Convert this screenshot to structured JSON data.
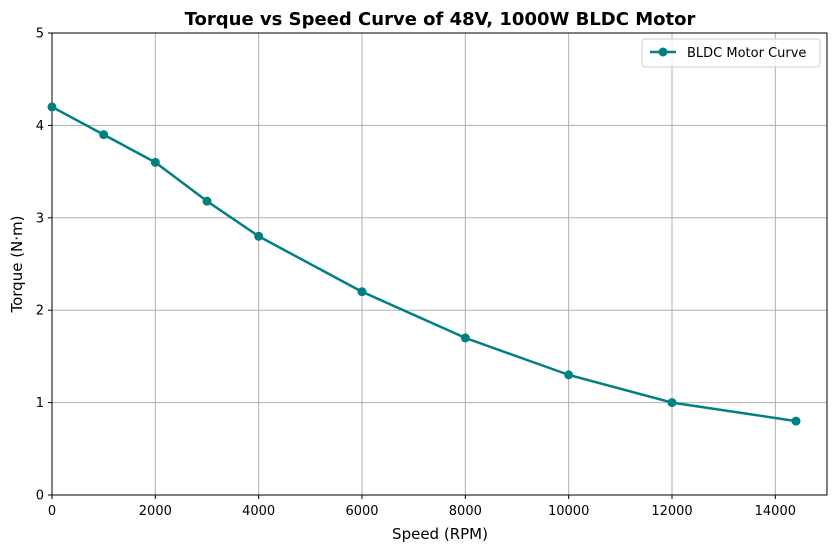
{
  "chart_data": {
    "type": "line",
    "title": "Torque vs Speed Curve of 48V, 1000W BLDC Motor",
    "xlabel": "Speed (RPM)",
    "ylabel": "Torque (N·m)",
    "xlim": [
      0,
      15000
    ],
    "ylim": [
      0,
      5
    ],
    "xticks": [
      0,
      2000,
      4000,
      6000,
      8000,
      10000,
      12000,
      14000
    ],
    "yticks": [
      0,
      1,
      2,
      3,
      4,
      5
    ],
    "grid": true,
    "legend_position": "top-right",
    "series": [
      {
        "name": "BLDC Motor Curve",
        "color": "#008080",
        "marker": "circle",
        "x": [
          0,
          1000,
          2000,
          3000,
          4000,
          6000,
          8000,
          10000,
          12000,
          14400
        ],
        "y": [
          4.2,
          3.9,
          3.6,
          3.18,
          2.8,
          2.2,
          1.7,
          1.3,
          1.0,
          0.8
        ]
      }
    ]
  }
}
